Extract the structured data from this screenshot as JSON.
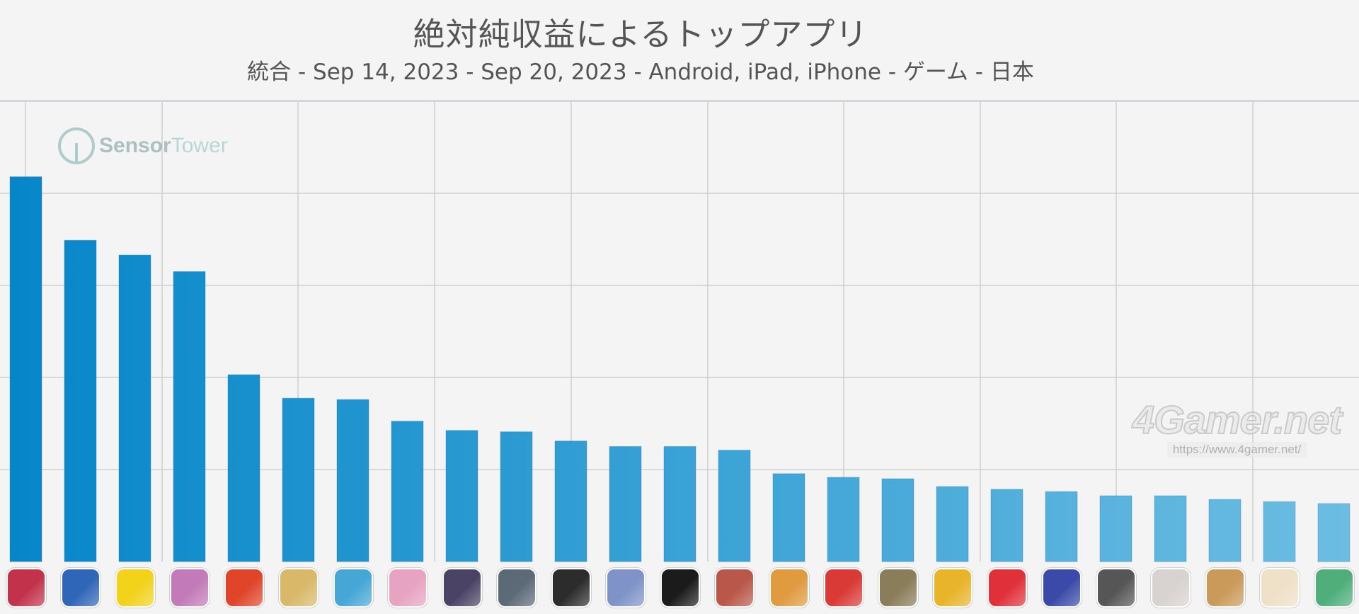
{
  "chart_data": {
    "type": "bar",
    "title": "絶対純収益によるトップアプリ",
    "subtitle": "統合 - Sep 14, 2023 - Sep 20, 2023 - Android, iPad, iPhone - ゲーム - 日本",
    "xlabel": "",
    "ylabel": "",
    "ylim": [
      0,
      100
    ],
    "grid": true,
    "legend": "none",
    "categories": [
      "",
      "",
      "",
      "",
      "",
      "",
      "",
      "",
      "",
      "",
      "",
      "",
      "",
      "",
      "",
      "",
      "",
      "",
      "",
      "",
      "",
      "",
      "",
      "",
      ""
    ],
    "values": [
      83.6,
      69.8,
      66.6,
      63.0,
      40.6,
      35.5,
      35.2,
      30.5,
      28.5,
      28.2,
      26.2,
      25.0,
      25.0,
      24.2,
      19.1,
      18.3,
      18.0,
      16.3,
      15.7,
      15.2,
      14.3,
      14.3,
      13.5,
      13.0,
      12.6
    ],
    "bar_color_start": "#0686c9",
    "bar_color_end": "#6cbde2",
    "icon_colors": [
      "#c2324a",
      "#2f66b8",
      "#f2d21a",
      "#c27ab8",
      "#e0452a",
      "#d9b86a",
      "#46a7d6",
      "#e7a3c2",
      "#4a4366",
      "#5c6a78",
      "#2c2c2c",
      "#7f93c8",
      "#1b1b1b",
      "#b9584a",
      "#e09a40",
      "#d93a36",
      "#8a7d5a",
      "#e8b42a",
      "#e0313a",
      "#3b4aa8",
      "#565656",
      "#d8d2d0",
      "#c99a5a",
      "#efe0c8",
      "#4fae7a"
    ]
  },
  "watermarks": {
    "sensortower_a": "Sensor",
    "sensortower_b": "Tower",
    "fourgamer": "4Gamer.net",
    "fourgamer_url": "https://www.4gamer.net/"
  }
}
